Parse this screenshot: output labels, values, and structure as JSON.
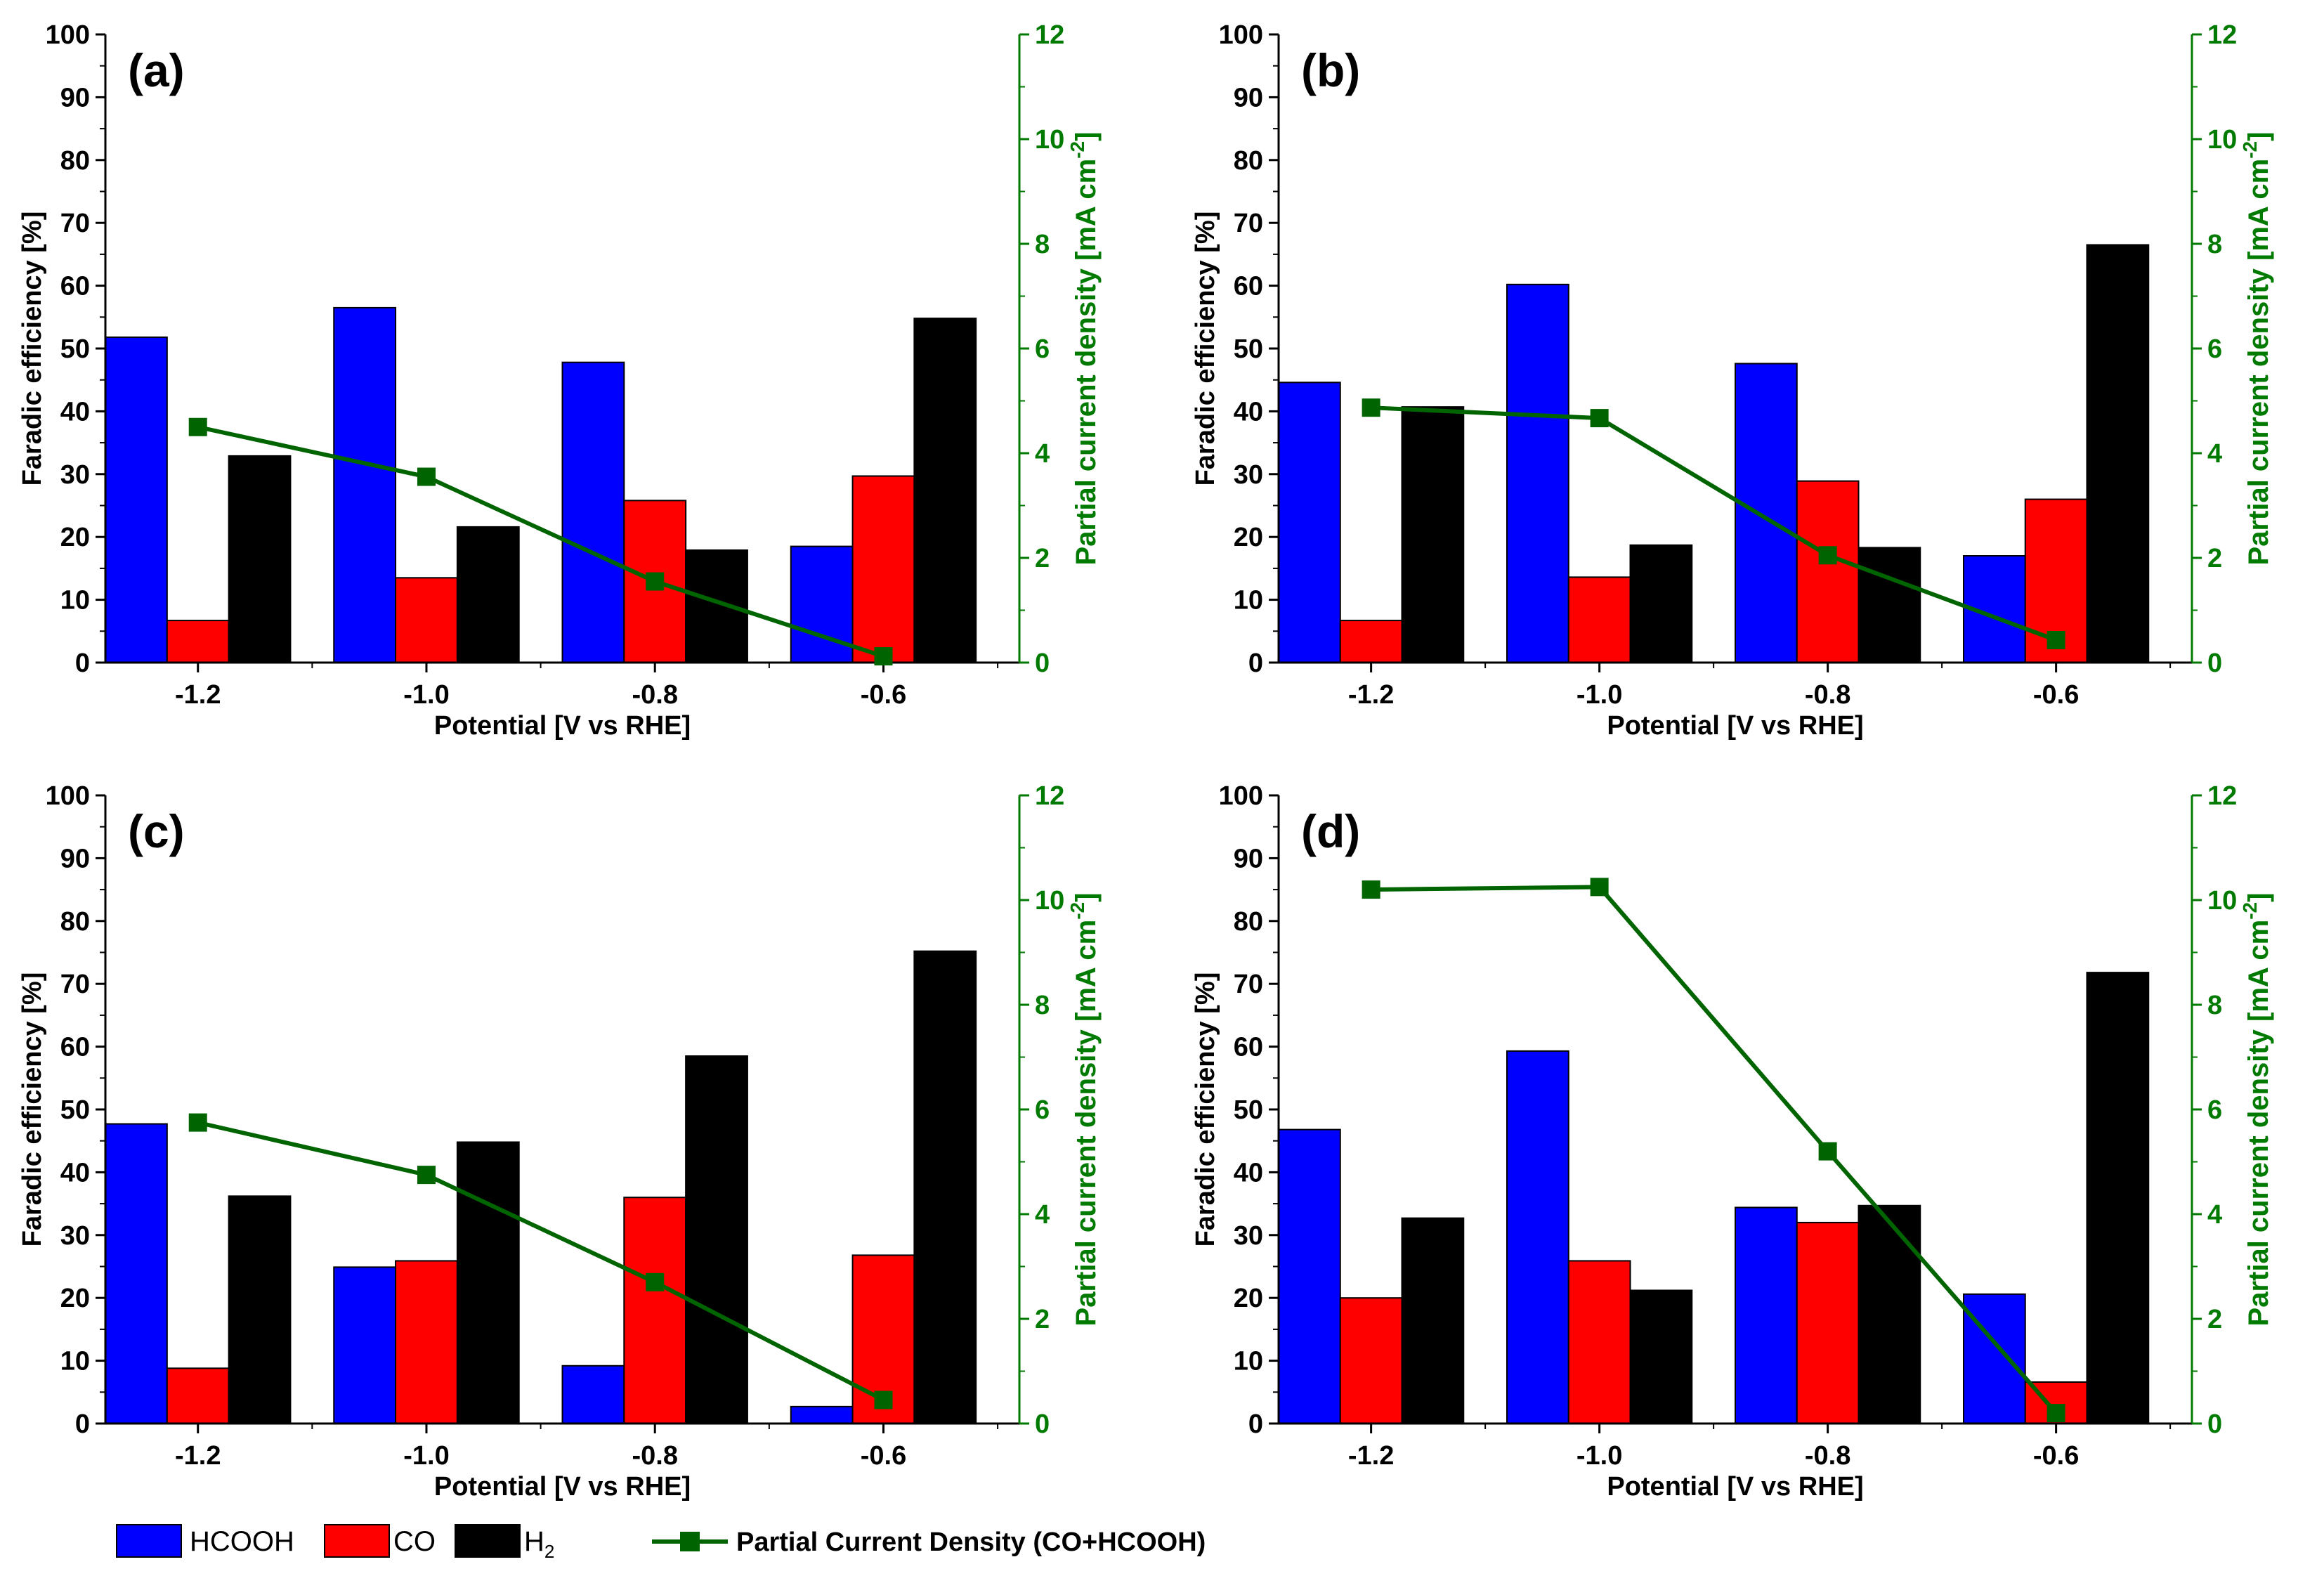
{
  "colors": {
    "HCOOH": "#0000ff",
    "CO": "#ff0000",
    "H2": "#000000",
    "line": "#006400",
    "right_axis": "#007a00"
  },
  "legend": {
    "hcooh": "HCOOH",
    "co": "CO",
    "h2_base": "H",
    "h2_sub": "2",
    "line": "Partial Current Density (CO+HCOOH)"
  },
  "chart_data": [
    {
      "type": "bar",
      "panel_label": "(a)",
      "categories": [
        "-1.2",
        "-1.0",
        "-0.8",
        "-0.6"
      ],
      "x": [
        -1.2,
        -1.0,
        -0.8,
        -0.6
      ],
      "xlabel": "Potential [V vs RHE]",
      "ylabel": "Faradic efficiency [%]",
      "ylabel_right": "Partial current density [mA cm",
      "ylabel_right_sup": "-2",
      "ylim": [
        0,
        100
      ],
      "ylim_right": [
        0,
        12
      ],
      "yticks": [
        0,
        10,
        20,
        30,
        40,
        50,
        60,
        70,
        80,
        90,
        100
      ],
      "yticks_right": [
        0,
        2,
        4,
        6,
        8,
        10,
        12
      ],
      "series": [
        {
          "name": "HCOOH",
          "values": [
            51.8,
            56.5,
            47.8,
            18.5
          ]
        },
        {
          "name": "CO",
          "values": [
            6.7,
            13.5,
            25.8,
            29.7
          ]
        },
        {
          "name": "H2",
          "values": [
            32.9,
            21.6,
            17.9,
            54.8
          ]
        }
      ],
      "line_series": {
        "name": "Partial Current Density (CO+HCOOH)",
        "values": [
          4.5,
          3.55,
          1.55,
          0.12
        ]
      }
    },
    {
      "type": "bar",
      "panel_label": "(b)",
      "categories": [
        "-1.2",
        "-1.0",
        "-0.8",
        "-0.6"
      ],
      "x": [
        -1.2,
        -1.0,
        -0.8,
        -0.6
      ],
      "xlabel": "Potential [V vs RHE]",
      "ylabel": "Faradic efficiency [%]",
      "ylabel_right": "Partial current density [mA cm",
      "ylabel_right_sup": "-2",
      "ylim": [
        0,
        100
      ],
      "ylim_right": [
        0,
        12
      ],
      "yticks": [
        0,
        10,
        20,
        30,
        40,
        50,
        60,
        70,
        80,
        90,
        100
      ],
      "yticks_right": [
        0,
        2,
        4,
        6,
        8,
        10,
        12
      ],
      "series": [
        {
          "name": "HCOOH",
          "values": [
            44.6,
            60.2,
            47.6,
            17.0
          ]
        },
        {
          "name": "CO",
          "values": [
            6.7,
            13.6,
            28.9,
            26.0
          ]
        },
        {
          "name": "H2",
          "values": [
            40.7,
            18.7,
            18.3,
            66.5
          ]
        }
      ],
      "line_series": {
        "name": "Partial Current Density (CO+HCOOH)",
        "values": [
          4.87,
          4.67,
          2.05,
          0.43
        ]
      }
    },
    {
      "type": "bar",
      "panel_label": "(c)",
      "categories": [
        "-1.2",
        "-1.0",
        "-0.8",
        "-0.6"
      ],
      "x": [
        -1.2,
        -1.0,
        -0.8,
        -0.6
      ],
      "xlabel": "Potential [V vs RHE]",
      "ylabel": "Faradic efficiency [%]",
      "ylabel_right": "Partial current density [mA cm",
      "ylabel_right_sup": "-2",
      "ylim": [
        0,
        100
      ],
      "ylim_right": [
        0,
        12
      ],
      "yticks": [
        0,
        10,
        20,
        30,
        40,
        50,
        60,
        70,
        80,
        90,
        100
      ],
      "yticks_right": [
        0,
        2,
        4,
        6,
        8,
        10,
        12
      ],
      "series": [
        {
          "name": "HCOOH",
          "values": [
            47.7,
            24.9,
            9.2,
            2.7
          ]
        },
        {
          "name": "CO",
          "values": [
            8.8,
            25.9,
            36.0,
            26.8
          ]
        },
        {
          "name": "H2",
          "values": [
            36.2,
            44.8,
            58.5,
            75.2
          ]
        }
      ],
      "line_series": {
        "name": "Partial Current Density (CO+HCOOH)",
        "values": [
          5.75,
          4.75,
          2.7,
          0.45
        ]
      }
    },
    {
      "type": "bar",
      "panel_label": "(d)",
      "categories": [
        "-1.2",
        "-1.0",
        "-0.8",
        "-0.6"
      ],
      "x": [
        -1.2,
        -1.0,
        -0.8,
        -0.6
      ],
      "xlabel": "Potential [V vs RHE]",
      "ylabel": "Faradic efficiency [%]",
      "ylabel_right": "Partial current density [mA cm",
      "ylabel_right_sup": "-2",
      "ylim": [
        0,
        100
      ],
      "ylim_right": [
        0,
        12
      ],
      "yticks": [
        0,
        10,
        20,
        30,
        40,
        50,
        60,
        70,
        80,
        90,
        100
      ],
      "yticks_right": [
        0,
        2,
        4,
        6,
        8,
        10,
        12
      ],
      "series": [
        {
          "name": "HCOOH",
          "values": [
            46.8,
            59.3,
            34.4,
            20.6
          ]
        },
        {
          "name": "CO",
          "values": [
            20.0,
            25.9,
            32.0,
            6.6
          ]
        },
        {
          "name": "H2",
          "values": [
            32.7,
            21.2,
            34.7,
            71.8
          ]
        }
      ],
      "line_series": {
        "name": "Partial Current Density (CO+HCOOH)",
        "values": [
          10.2,
          10.25,
          5.2,
          0.2
        ]
      }
    }
  ]
}
